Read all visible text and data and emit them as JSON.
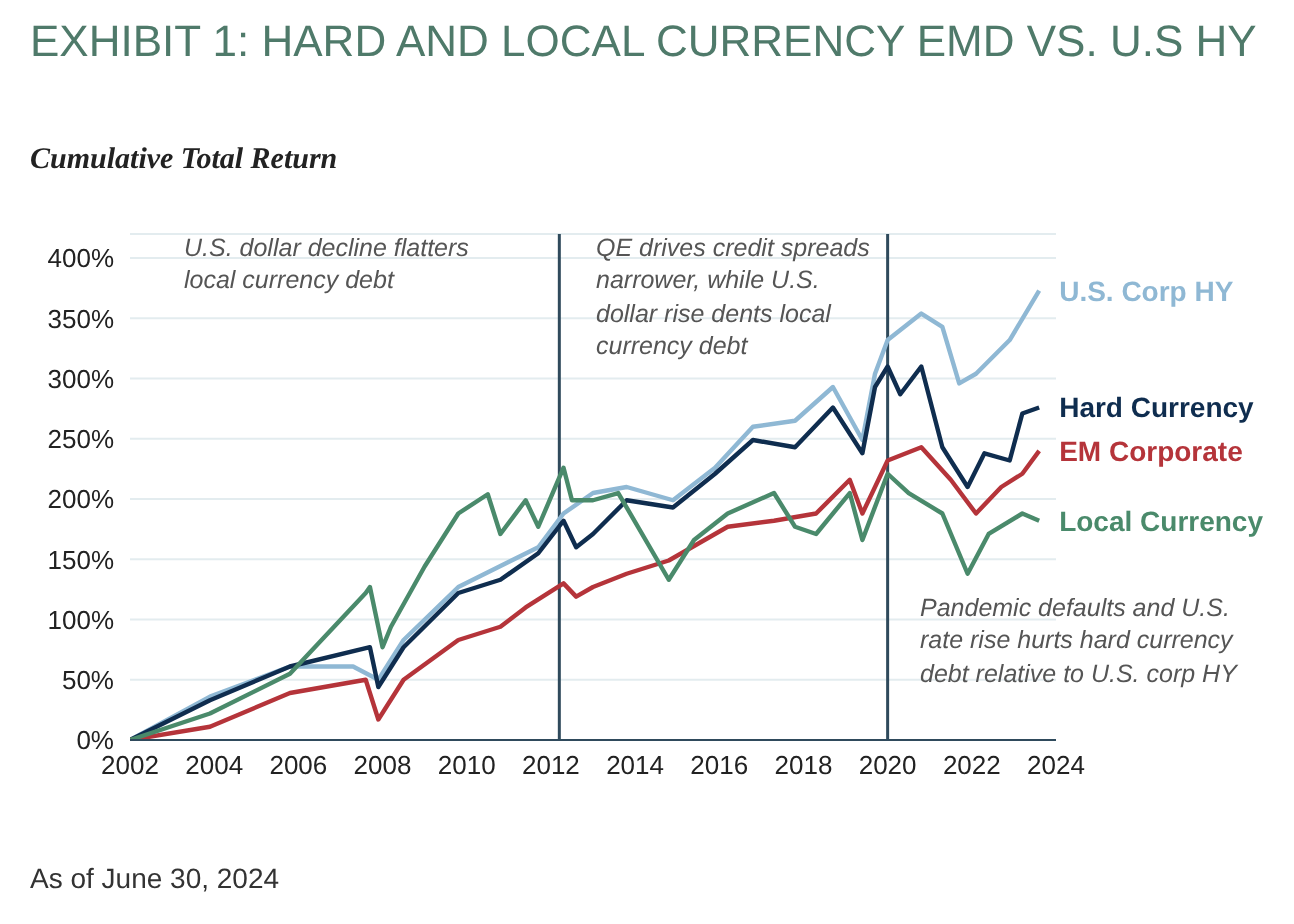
{
  "chart_data": {
    "type": "line",
    "title": "EXHIBIT 1: HARD AND LOCAL CURRENCY EMD VS. U.S HY",
    "subtitle": "Cumulative Total Return",
    "annotations": [
      "U.S. dollar decline flatters local currency debt",
      "QE drives credit spreads narrower, while U.S. dollar rise dents local currency debt",
      "Pandemic defaults and U.S. rate rise hurts hard currency debt relative to U.S. corp HY",
      "As of June 30, 2024"
    ],
    "series": [
      {
        "name": "U.S. Corp HY",
        "color": "#8fb8d4",
        "x": [
          2002,
          2003.9,
          2005.8,
          2007.3,
          2007.9,
          2008.5,
          2009.8,
          2011.7,
          2012.3,
          2013.0,
          2013.8,
          2014.9,
          2015.9,
          2016.8,
          2017.8,
          2018.7,
          2019.4,
          2019.7,
          2020.0,
          2020.8,
          2021.3,
          2021.7,
          2022.1,
          2022.9,
          2023.6
        ],
        "values": [
          0,
          36,
          61,
          61,
          50,
          83,
          127,
          160,
          188,
          205,
          210,
          199,
          226,
          260,
          265,
          293,
          249,
          304,
          332,
          354,
          343,
          296,
          304,
          332,
          373
        ]
      },
      {
        "name": "Hard Currency",
        "color": "#0f2d4f",
        "x": [
          2002,
          2003.9,
          2005.8,
          2007.7,
          2007.9,
          2008.5,
          2009.8,
          2010.8,
          2011.7,
          2012.3,
          2012.6,
          2013.0,
          2013.8,
          2014.9,
          2015.9,
          2016.8,
          2017.8,
          2018.7,
          2019.4,
          2019.7,
          2020.0,
          2020.3,
          2020.8,
          2021.3,
          2021.9,
          2022.3,
          2022.9,
          2023.2,
          2023.6
        ],
        "values": [
          0,
          33,
          61,
          77,
          44,
          77,
          122,
          133,
          155,
          182,
          160,
          171,
          199,
          193,
          221,
          249,
          243,
          276,
          238,
          293,
          310,
          287,
          310,
          243,
          210,
          238,
          232,
          271,
          276
        ]
      },
      {
        "name": "EM Corporate",
        "color": "#b5343a",
        "x": [
          2002,
          2003.9,
          2005.8,
          2007.6,
          2007.9,
          2008.5,
          2009.8,
          2010.8,
          2011.4,
          2012.3,
          2012.6,
          2013.0,
          2013.8,
          2014.8,
          2016.2,
          2017.3,
          2018.3,
          2019.1,
          2019.4,
          2020.0,
          2020.8,
          2021.5,
          2022.1,
          2022.7,
          2023.2,
          2023.6
        ],
        "values": [
          0,
          11,
          39,
          50,
          17,
          50,
          83,
          94,
          110,
          130,
          119,
          127,
          138,
          149,
          177,
          182,
          188,
          216,
          188,
          232,
          243,
          216,
          188,
          210,
          221,
          240
        ]
      },
      {
        "name": "Local Currency",
        "color": "#4a8a6b",
        "x": [
          2002,
          2003.9,
          2005.8,
          2007.6,
          2007.7,
          2008.0,
          2008.2,
          2009.0,
          2009.8,
          2010.5,
          2010.8,
          2011.4,
          2011.7,
          2012.3,
          2012.5,
          2013.0,
          2013.6,
          2014.8,
          2015.4,
          2016.2,
          2017.3,
          2017.8,
          2018.3,
          2019.1,
          2019.4,
          2020.0,
          2020.5,
          2021.3,
          2021.9,
          2022.4,
          2023.2,
          2023.6
        ],
        "values": [
          0,
          22,
          55,
          122,
          127,
          77,
          94,
          144,
          188,
          204,
          171,
          199,
          177,
          226,
          199,
          199,
          205,
          133,
          166,
          188,
          205,
          177,
          171,
          205,
          166,
          221,
          205,
          188,
          138,
          171,
          188,
          182
        ]
      }
    ],
    "xlim": [
      2002,
      2024
    ],
    "xticks": [
      2002,
      2004,
      2006,
      2008,
      2010,
      2012,
      2014,
      2016,
      2018,
      2020,
      2022,
      2024
    ],
    "ylim": [
      0,
      420
    ],
    "yticks": [
      {
        "value": 0,
        "label": "0%"
      },
      {
        "value": 50,
        "label": "50%"
      },
      {
        "value": 100,
        "label": "100%"
      },
      {
        "value": 150,
        "label": "150%"
      },
      {
        "value": 200,
        "label": "200%"
      },
      {
        "value": 250,
        "label": "250%"
      },
      {
        "value": 300,
        "label": "300%"
      },
      {
        "value": 350,
        "label": "350%"
      },
      {
        "value": 400,
        "label": "400%"
      }
    ],
    "grid": "y",
    "marker": "none",
    "line_style": "solid",
    "ref_lines": [
      {
        "axis": "x",
        "value": 2012.2,
        "color": "#2f4a5c"
      },
      {
        "axis": "x",
        "value": 2020.0,
        "color": "#2f4a5c"
      }
    ]
  }
}
